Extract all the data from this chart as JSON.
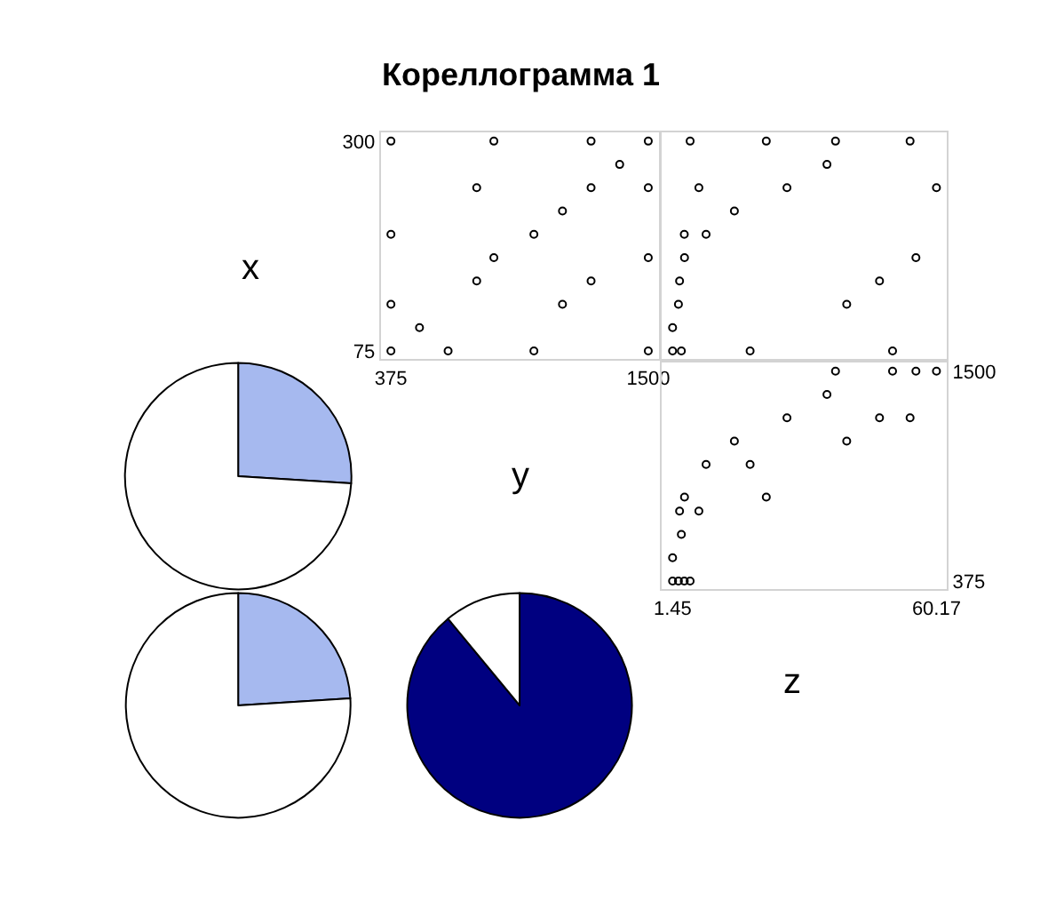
{
  "chart_data": [
    {
      "type": "other",
      "title": "Кореллограмма 1"
    },
    {
      "type": "other",
      "title": "x"
    },
    {
      "type": "scatter",
      "xlim": [
        330,
        1545
      ],
      "ylim": [
        66,
        309
      ],
      "xticks": [
        375,
        1500
      ],
      "yticks": [
        75,
        300
      ],
      "marker": "circle",
      "grid": false,
      "series": [
        {
          "color": "#000000",
          "x": [
            1500,
            1375,
            1250,
            1500,
            750,
            1125,
            1000,
            375,
            825,
            1500,
            750,
            1250,
            375,
            1125,
            500,
            1250,
            825,
            375,
            375,
            625,
            1000,
            1500
          ],
          "values": [
            300,
            275,
            250,
            250,
            250,
            225,
            200,
            200,
            175,
            175,
            150,
            150,
            125,
            125,
            100,
            300,
            300,
            300,
            75,
            75,
            75,
            75
          ]
        }
      ]
    },
    {
      "type": "scatter",
      "xlim": [
        -0.9,
        62.5
      ],
      "ylim": [
        66,
        309
      ],
      "marker": "circle",
      "grid": false,
      "series": [
        {
          "color": "#000000",
          "x": [
            37.7,
            35.8,
            26.9,
            60.17,
            7.3,
            15.2,
            8.9,
            4.05,
            4.1,
            55.6,
            3.0,
            47.5,
            2.75,
            40.2,
            1.45,
            54.3,
            22.3,
            5.35,
            1.45,
            3.4,
            18.7,
            50.4
          ],
          "values": [
            300,
            275,
            250,
            250,
            250,
            225,
            200,
            200,
            175,
            175,
            150,
            150,
            125,
            125,
            100,
            300,
            300,
            300,
            75,
            75,
            75,
            75
          ]
        }
      ]
    },
    {
      "type": "pie",
      "categories": [
        null,
        null
      ],
      "values": [
        26,
        74
      ],
      "colors": [
        "#a6b9ef",
        "#ffffff"
      ]
    },
    {
      "type": "other",
      "title": "y"
    },
    {
      "type": "scatter",
      "xlim": [
        -0.9,
        62.5
      ],
      "ylim": [
        330,
        1545
      ],
      "xticks": [
        1.45,
        60.17
      ],
      "yticks": [
        375,
        1500
      ],
      "marker": "circle",
      "grid": false,
      "series": [
        {
          "color": "#000000",
          "x": [
            37.7,
            35.8,
            26.9,
            60.17,
            7.3,
            15.2,
            8.9,
            4.05,
            4.1,
            55.6,
            3.0,
            47.5,
            2.75,
            40.2,
            1.45,
            54.3,
            22.3,
            5.35,
            1.45,
            3.4,
            18.7,
            50.4
          ],
          "values": [
            1500,
            1375,
            1250,
            1500,
            750,
            1125,
            1000,
            375,
            825,
            1500,
            750,
            1250,
            375,
            1125,
            500,
            1250,
            825,
            375,
            375,
            625,
            1000,
            1500
          ]
        }
      ]
    },
    {
      "type": "pie",
      "categories": [
        null,
        null
      ],
      "values": [
        24,
        76
      ],
      "colors": [
        "#a6b9ef",
        "#ffffff"
      ]
    },
    {
      "type": "pie",
      "categories": [
        null,
        null
      ],
      "values": [
        89,
        11
      ],
      "colors": [
        "#000080",
        "#ffffff"
      ]
    },
    {
      "type": "other",
      "title": "z"
    }
  ]
}
